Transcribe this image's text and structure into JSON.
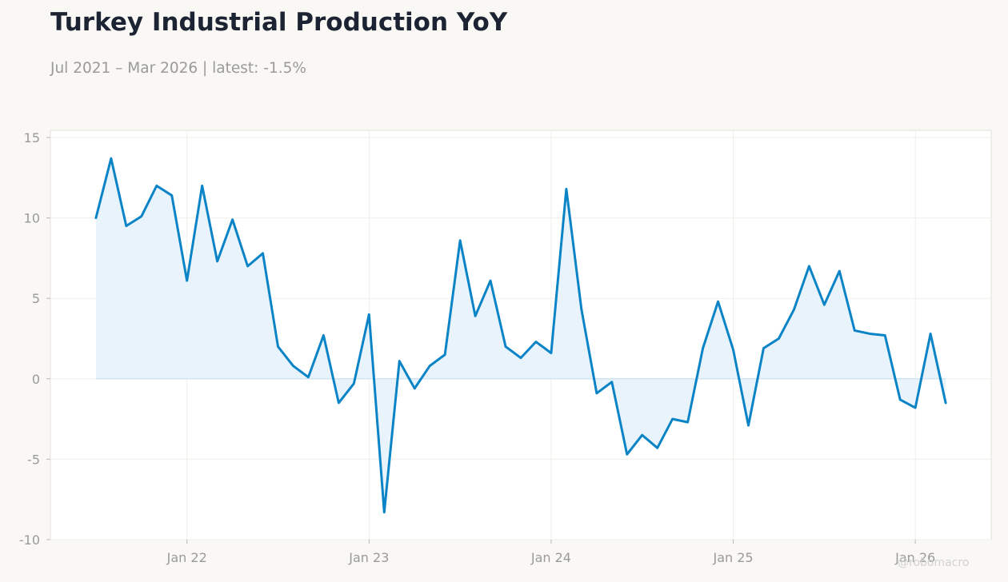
{
  "header": {
    "title": "Turkey Industrial Production YoY",
    "subtitle": "Jul 2021 – Mar 2026 | latest: -1.5%"
  },
  "watermark": "@robomacro",
  "colors": {
    "background": "#f9f8f5",
    "plot_background": "#ffffff",
    "line": "#0a84c6",
    "fill": "#e9f3fb",
    "title": "#1c2333",
    "muted_text": "#9a9a96"
  },
  "chart_data": {
    "type": "area",
    "title": "Turkey Industrial Production YoY",
    "subtitle": "Jul 2021 – Mar 2026 | latest: -1.5%",
    "xlabel": "",
    "ylabel": "",
    "ylim": [
      -10,
      15
    ],
    "xlim": [
      "2021-04-01",
      "2026-06-01"
    ],
    "yticks": [
      15,
      10,
      5,
      0,
      -5,
      -10
    ],
    "yticklabels": [
      "15",
      "10",
      "5",
      "0",
      "-5",
      "-10"
    ],
    "xticks": [
      "2022-01-01",
      "2023-01-01",
      "2024-01-01",
      "2025-01-01",
      "2026-01-01"
    ],
    "xticklabels": [
      "Jan 22",
      "Jan 23",
      "Jan 24",
      "Jan 25",
      "Jan 26"
    ],
    "grid": true,
    "legend": "none",
    "series": [
      {
        "x": [
          "2021-07",
          "2021-08",
          "2021-09",
          "2021-10",
          "2021-11",
          "2021-12",
          "2022-01",
          "2022-02",
          "2022-03",
          "2022-04",
          "2022-05",
          "2022-06",
          "2022-07",
          "2022-08",
          "2022-09",
          "2022-10",
          "2022-11",
          "2022-12",
          "2023-01",
          "2023-02",
          "2023-03",
          "2023-04",
          "2023-05",
          "2023-06",
          "2023-07",
          "2023-08",
          "2023-09",
          "2023-10",
          "2023-11",
          "2023-12",
          "2024-01",
          "2024-02",
          "2024-03",
          "2024-04",
          "2024-05",
          "2024-06",
          "2024-07",
          "2024-08",
          "2024-09",
          "2024-10",
          "2024-11",
          "2024-12",
          "2025-01",
          "2025-02",
          "2025-03",
          "2025-04",
          "2025-05",
          "2025-06",
          "2025-07",
          "2025-08",
          "2025-09",
          "2025-10",
          "2025-11",
          "2025-12",
          "2026-01",
          "2026-02",
          "2026-03"
        ],
        "values": [
          10.0,
          13.7,
          9.5,
          10.1,
          12.0,
          11.4,
          6.1,
          12.0,
          7.3,
          9.9,
          7.0,
          7.8,
          2.0,
          0.8,
          0.1,
          2.7,
          -1.5,
          -0.3,
          4.0,
          -8.3,
          1.1,
          -0.6,
          0.8,
          1.5,
          8.6,
          3.9,
          6.1,
          2.0,
          1.3,
          2.3,
          1.6,
          11.8,
          4.3,
          -0.9,
          -0.2,
          -4.7,
          -3.5,
          -4.3,
          -2.5,
          -2.7,
          1.9,
          4.8,
          1.8,
          -2.9,
          1.9,
          2.5,
          4.3,
          7.0,
          4.6,
          6.7,
          3.0,
          2.8,
          2.7,
          -1.3,
          -1.8,
          2.8,
          -1.5
        ]
      }
    ]
  }
}
